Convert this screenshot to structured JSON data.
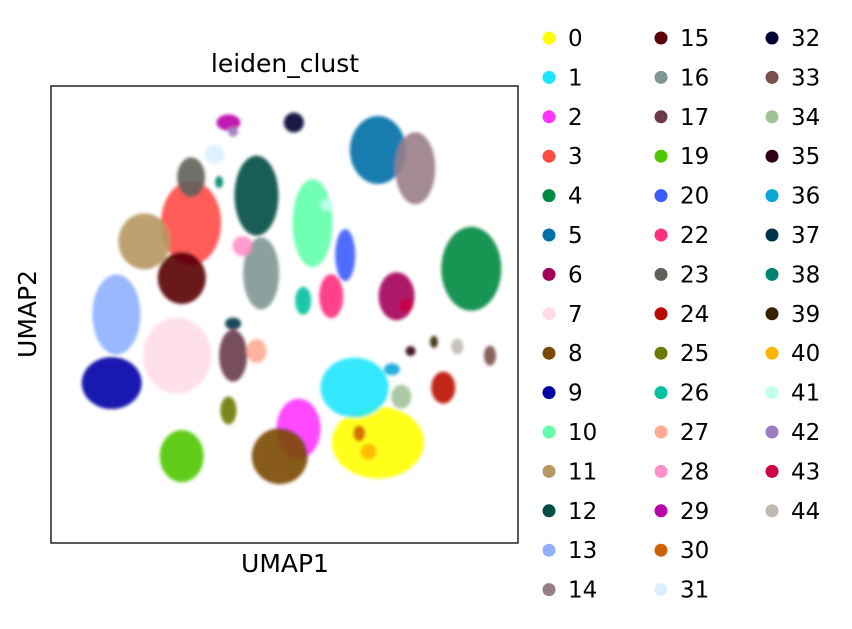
{
  "chart_data": {
    "type": "scatter",
    "title": "leiden_clust",
    "xlabel": "UMAP1",
    "ylabel": "UMAP2",
    "grid": false,
    "ticks": "none",
    "legend_position": "right",
    "legend_columns": 3,
    "series": [
      {
        "name": "0",
        "color": "#ffff00",
        "x": 7.0,
        "y": 2.2
      },
      {
        "name": "1",
        "color": "#1ce6ff",
        "x": 6.5,
        "y": 3.4
      },
      {
        "name": "2",
        "color": "#ff34ff",
        "x": 5.3,
        "y": 2.5
      },
      {
        "name": "3",
        "color": "#ff4a46",
        "x": 3.0,
        "y": 7.0
      },
      {
        "name": "4",
        "color": "#008941",
        "x": 9.0,
        "y": 6.0
      },
      {
        "name": "5",
        "color": "#006fa6",
        "x": 7.0,
        "y": 8.6
      },
      {
        "name": "6",
        "color": "#a30059",
        "x": 7.4,
        "y": 5.4
      },
      {
        "name": "7",
        "color": "#ffdbe5",
        "x": 2.7,
        "y": 4.1
      },
      {
        "name": "8",
        "color": "#7a4900",
        "x": 4.9,
        "y": 1.9
      },
      {
        "name": "9",
        "color": "#0000a6",
        "x": 1.3,
        "y": 3.5
      },
      {
        "name": "10",
        "color": "#63ffac",
        "x": 5.6,
        "y": 7.0
      },
      {
        "name": "11",
        "color": "#b79762",
        "x": 2.0,
        "y": 6.6
      },
      {
        "name": "12",
        "color": "#004d43",
        "x": 4.4,
        "y": 7.6
      },
      {
        "name": "13",
        "color": "#8fb0ff",
        "x": 1.4,
        "y": 5.0
      },
      {
        "name": "14",
        "color": "#997d87",
        "x": 7.8,
        "y": 8.2
      },
      {
        "name": "15",
        "color": "#5a0007",
        "x": 2.8,
        "y": 5.8
      },
      {
        "name": "16",
        "color": "#809693",
        "x": 4.5,
        "y": 5.9
      },
      {
        "name": "17",
        "color": "#6a3a4c",
        "x": 3.9,
        "y": 4.1
      },
      {
        "name": "19",
        "color": "#4fc601",
        "x": 2.8,
        "y": 1.9
      },
      {
        "name": "20",
        "color": "#3b5dff",
        "x": 6.3,
        "y": 6.3
      },
      {
        "name": "22",
        "color": "#ff2f80",
        "x": 6.0,
        "y": 5.4
      },
      {
        "name": "23",
        "color": "#61615a",
        "x": 3.0,
        "y": 8.0
      },
      {
        "name": "24",
        "color": "#ba0900",
        "x": 8.4,
        "y": 3.4
      },
      {
        "name": "25",
        "color": "#6b7900",
        "x": 3.8,
        "y": 2.9
      },
      {
        "name": "26",
        "color": "#00c2a0",
        "x": 5.4,
        "y": 5.3
      },
      {
        "name": "27",
        "color": "#ffaa92",
        "x": 4.4,
        "y": 4.2
      },
      {
        "name": "28",
        "color": "#ff90c9",
        "x": 4.1,
        "y": 6.5
      },
      {
        "name": "29",
        "color": "#b903aa",
        "x": 3.8,
        "y": 9.2
      },
      {
        "name": "30",
        "color": "#d16100",
        "x": 6.6,
        "y": 2.4
      },
      {
        "name": "31",
        "color": "#ddefff",
        "x": 3.5,
        "y": 8.5
      },
      {
        "name": "32",
        "color": "#000035",
        "x": 5.2,
        "y": 9.2
      },
      {
        "name": "33",
        "color": "#7b4f4b",
        "x": 9.4,
        "y": 4.1
      },
      {
        "name": "34",
        "color": "#a1c299",
        "x": 7.5,
        "y": 3.2
      },
      {
        "name": "35",
        "color": "#300018",
        "x": 7.7,
        "y": 4.2
      },
      {
        "name": "36",
        "color": "#0aa6d8",
        "x": 7.3,
        "y": 3.8
      },
      {
        "name": "37",
        "color": "#013349",
        "x": 3.9,
        "y": 4.8
      },
      {
        "name": "38",
        "color": "#00846f",
        "x": 3.6,
        "y": 7.9
      },
      {
        "name": "39",
        "color": "#372101",
        "x": 8.2,
        "y": 4.4
      },
      {
        "name": "40",
        "color": "#ffb500",
        "x": 6.8,
        "y": 2.0
      },
      {
        "name": "41",
        "color": "#c2ffed",
        "x": 5.9,
        "y": 7.4
      },
      {
        "name": "42",
        "color": "#a079bf",
        "x": 3.9,
        "y": 9.0
      },
      {
        "name": "43",
        "color": "#cc0744",
        "x": 7.6,
        "y": 5.2
      },
      {
        "name": "44",
        "color": "#c0b9b2",
        "x": 8.7,
        "y": 4.3
      }
    ]
  }
}
